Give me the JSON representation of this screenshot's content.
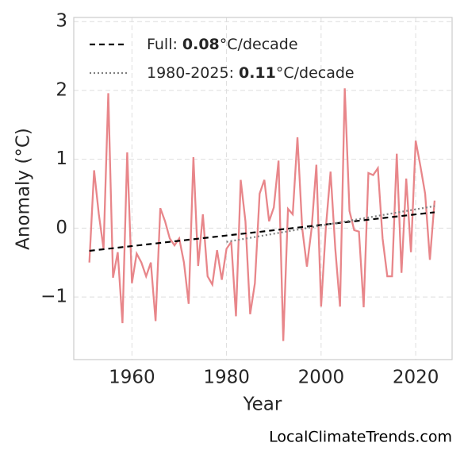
{
  "chart_data": {
    "type": "line",
    "xlabel": "Year",
    "ylabel": "Anomaly (°C)",
    "x": [
      1951,
      1952,
      1953,
      1954,
      1955,
      1956,
      1957,
      1958,
      1959,
      1960,
      1961,
      1962,
      1963,
      1964,
      1965,
      1966,
      1967,
      1968,
      1969,
      1970,
      1971,
      1972,
      1973,
      1974,
      1975,
      1976,
      1977,
      1978,
      1979,
      1980,
      1981,
      1982,
      1983,
      1984,
      1985,
      1986,
      1987,
      1988,
      1989,
      1990,
      1991,
      1992,
      1993,
      1994,
      1995,
      1996,
      1997,
      1998,
      1999,
      2000,
      2001,
      2002,
      2003,
      2004,
      2005,
      2006,
      2007,
      2008,
      2009,
      2010,
      2011,
      2012,
      2013,
      2014,
      2015,
      2016,
      2017,
      2018,
      2019,
      2020,
      2021,
      2022,
      2023,
      2024
    ],
    "values": [
      -0.5,
      0.84,
      0.2,
      -0.3,
      1.96,
      -0.72,
      -0.35,
      -1.38,
      1.1,
      -0.8,
      -0.37,
      -0.5,
      -0.7,
      -0.5,
      -1.35,
      0.29,
      0.1,
      -0.15,
      -0.25,
      -0.15,
      -0.5,
      -1.1,
      1.03,
      -0.55,
      0.2,
      -0.7,
      -0.82,
      -0.32,
      -0.75,
      -0.3,
      -0.2,
      -1.28,
      0.7,
      0.1,
      -1.25,
      -0.8,
      0.5,
      0.7,
      0.1,
      0.3,
      0.98,
      -1.64,
      0.28,
      0.2,
      1.32,
      0.0,
      -0.56,
      0.0,
      0.92,
      -1.14,
      0.0,
      0.82,
      -0.3,
      -1.14,
      2.03,
      0.25,
      -0.03,
      -0.05,
      -1.15,
      0.8,
      0.77,
      0.87,
      -0.15,
      -0.7,
      -0.7,
      1.08,
      -0.65,
      0.72,
      -0.35,
      1.27,
      0.9,
      0.5,
      -0.46,
      0.4
    ],
    "color": "#e8868a",
    "trends": [
      {
        "name": "Full:",
        "slope": 0.08,
        "unit": "°C/decade",
        "color": "#000000",
        "dash": "7,5",
        "x": [
          1951,
          2024
        ],
        "values": [
          -0.33,
          0.23
        ]
      },
      {
        "name": "1980-2025:",
        "slope": 0.11,
        "unit": "°C/decade",
        "color": "#808080",
        "dash": "2,3",
        "x": [
          1980,
          2024
        ],
        "values": [
          -0.2,
          0.32
        ]
      }
    ],
    "xlim": [
      1947.7,
      2027.7
    ],
    "ylim": [
      -1.91,
      3.06
    ],
    "xticks": [
      1960,
      1980,
      2000,
      2020
    ],
    "yticks": [
      3,
      2,
      1,
      0,
      {
        "value": -1,
        "label": "−1"
      }
    ],
    "grid": true,
    "legend": "upper left",
    "watermark": "LocalClimateTrends.com"
  }
}
